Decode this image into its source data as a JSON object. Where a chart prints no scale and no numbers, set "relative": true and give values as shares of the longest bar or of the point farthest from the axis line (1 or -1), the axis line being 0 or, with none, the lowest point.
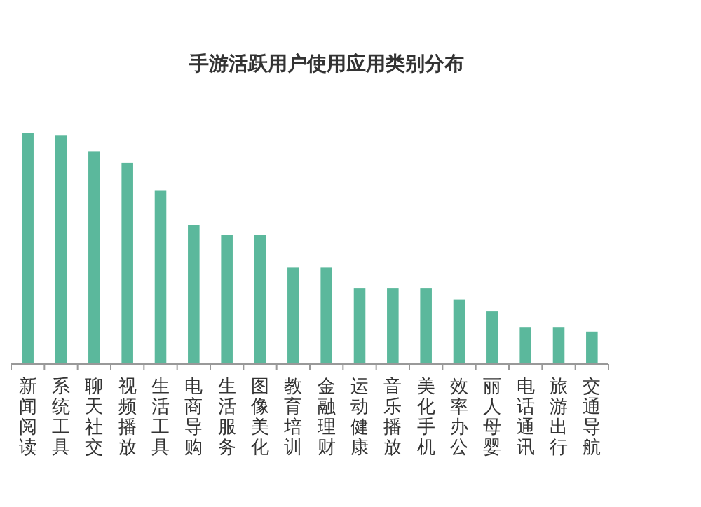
{
  "chart_data": {
    "type": "bar",
    "relative": true,
    "title": "手游活跃用户使用应用类别分布",
    "color": "#5bb89c",
    "categories": [
      "新闻阅读",
      "系统工具",
      "聊天社交",
      "视频播放",
      "生活工具",
      "电商导购",
      "生活服务",
      "图像美化",
      "教育培训",
      "金融理财",
      "运动健康",
      "音乐播放",
      "美化手机",
      "效率办公",
      "丽人母婴",
      "电话通讯",
      "旅游出行",
      "交通导航"
    ],
    "values": [
      1.0,
      0.99,
      0.92,
      0.87,
      0.75,
      0.6,
      0.56,
      0.56,
      0.42,
      0.42,
      0.33,
      0.33,
      0.33,
      0.28,
      0.23,
      0.16,
      0.16,
      0.14
    ]
  }
}
